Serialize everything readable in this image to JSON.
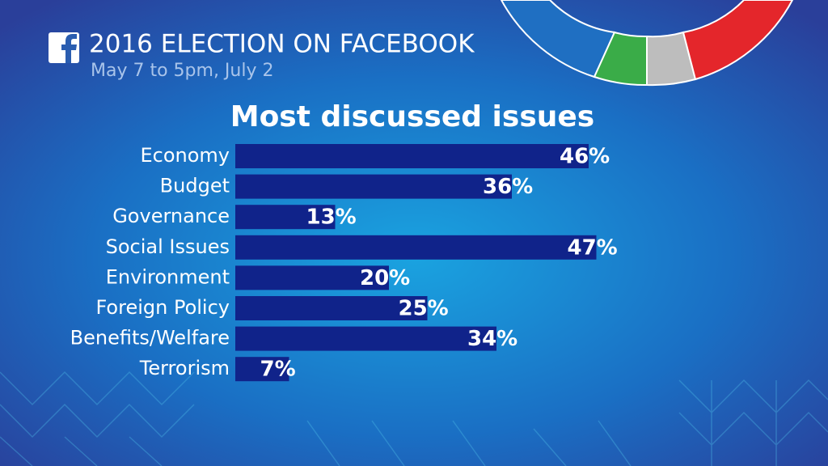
{
  "header": {
    "title": "2016 ELECTION ON FACEBOOK",
    "subtitle": "May 7 to 5pm, July 2"
  },
  "chart_data": {
    "type": "bar",
    "orientation": "horizontal",
    "title": "Most discussed issues",
    "categories": [
      "Economy",
      "Budget",
      "Governance",
      "Social Issues",
      "Environment",
      "Foreign Policy",
      "Benefits/Welfare",
      "Terrorism"
    ],
    "values": [
      46,
      36,
      13,
      47,
      20,
      25,
      34,
      7
    ],
    "value_labels": [
      "46%",
      "36%",
      "13%",
      "47%",
      "20%",
      "25%",
      "34%",
      "7%"
    ],
    "color": "#10238a"
  }
}
